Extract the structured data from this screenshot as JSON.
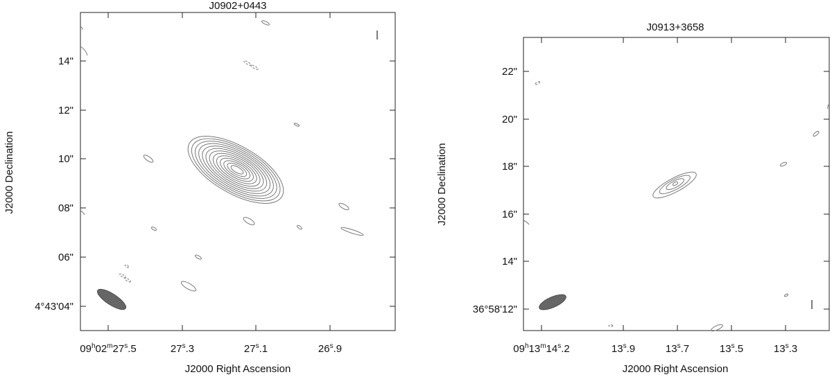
{
  "chart_data": [
    {
      "type": "contour",
      "title": "J0902+0443",
      "xlabel": "J2000 Right Ascension",
      "ylabel": "J2000 Declination",
      "x_ticks": [
        {
          "ra_s": 27.5,
          "label": [
            "09",
            "h",
            "02",
            "m",
            "27",
            "s",
            ".5"
          ]
        },
        {
          "ra_s": 27.3,
          "label": [
            "",
            "",
            "",
            "",
            "27",
            "s",
            ".3"
          ]
        },
        {
          "ra_s": 27.1,
          "label": [
            "",
            "",
            "",
            "",
            "27",
            "s",
            ".1"
          ]
        },
        {
          "ra_s": 26.9,
          "label": [
            "",
            "",
            "",
            "",
            "26",
            "s",
            ".9"
          ]
        }
      ],
      "y_ticks": [
        {
          "dec_arcsec": 14,
          "label": "14\""
        },
        {
          "dec_arcsec": 12,
          "label": "12\""
        },
        {
          "dec_arcsec": 10,
          "label": "10\""
        },
        {
          "dec_arcsec": 8,
          "label": "08\""
        },
        {
          "dec_arcsec": 6,
          "label": "06\""
        },
        {
          "dec_arcsec": 4,
          "label": "4°43'04\""
        }
      ],
      "source_peak": {
        "ra_s": 27.13,
        "dec_arcsec": 9.6
      },
      "contour_levels": 13,
      "beam": {
        "major_arcsec": 2.3,
        "minor_arcsec": 0.9,
        "pa_deg": 120
      },
      "contour_color": "#777777",
      "beam_color": "#666666"
    },
    {
      "type": "contour",
      "title": "J0913+3658",
      "xlabel": "J2000 Right Ascension",
      "ylabel": "J2000 Declination",
      "x_ticks": [
        {
          "ra_s": 14.2,
          "label": [
            "09",
            "h",
            "13",
            "m",
            "14",
            "s",
            ".2"
          ]
        },
        {
          "ra_s": 13.9,
          "label": [
            "",
            "",
            "",
            "",
            "13",
            "s",
            ".9"
          ]
        },
        {
          "ra_s": 13.7,
          "label": [
            "",
            "",
            "",
            "",
            "13",
            "s",
            ".7"
          ]
        },
        {
          "ra_s": 13.5,
          "label": [
            "",
            "",
            "",
            "",
            "13",
            "s",
            ".5"
          ]
        },
        {
          "ra_s": 13.3,
          "label": [
            "",
            "",
            "",
            "",
            "13",
            "s",
            ".3"
          ]
        }
      ],
      "y_ticks": [
        {
          "dec_arcsec": 22,
          "label": "22\""
        },
        {
          "dec_arcsec": 20,
          "label": "20\""
        },
        {
          "dec_arcsec": 18,
          "label": "18\""
        },
        {
          "dec_arcsec": 16,
          "label": "16\""
        },
        {
          "dec_arcsec": 14,
          "label": "14\""
        },
        {
          "dec_arcsec": 12,
          "label": "36°58'12\""
        }
      ],
      "source_peak": {
        "ra_s": 13.72,
        "dec_arcsec": 17.3
      },
      "contour_levels": 4,
      "beam": {
        "major_arcsec": 2.0,
        "minor_arcsec": 0.7,
        "pa_deg": 110
      },
      "contour_color": "#777777",
      "beam_color": "#666666"
    }
  ]
}
